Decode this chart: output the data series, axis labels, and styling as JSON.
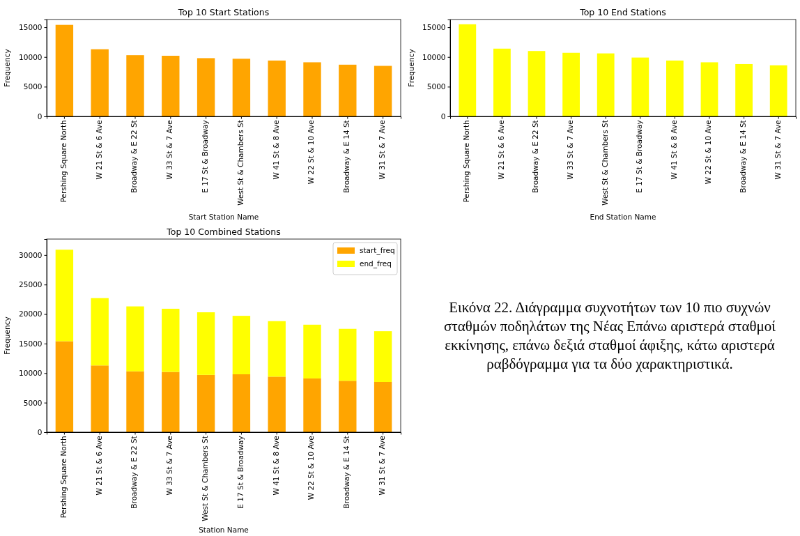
{
  "chart_data": [
    {
      "type": "bar",
      "title": "Top 10 Start Stations",
      "xlabel": "Start Station Name",
      "ylabel": "Frequency",
      "categories": [
        "Pershing Square North",
        "W 21 St & 6 Ave",
        "Broadway & E 22 St",
        "W 33 St & 7 Ave",
        "E 17 St & Broadway",
        "West St & Chambers St",
        "W 41 St & 8 Ave",
        "W 22 St & 10 Ave",
        "Broadway & E 14 St",
        "W 31 St & 7 Ave"
      ],
      "values": [
        15400,
        11300,
        10300,
        10200,
        9800,
        9700,
        9400,
        9100,
        8700,
        8500
      ],
      "color": "#ffa500",
      "ylim": [
        0,
        16300
      ],
      "yticks": [
        0,
        5000,
        10000,
        15000
      ]
    },
    {
      "type": "bar",
      "title": "Top 10 End Stations",
      "xlabel": "End Station Name",
      "ylabel": "Frequency",
      "categories": [
        "Pershing Square North",
        "W 21 St & 6 Ave",
        "Broadway & E 22 St",
        "W 33 St & 7 Ave",
        "West St & Chambers St",
        "E 17 St & Broadway",
        "W 41 St & 8 Ave",
        "W 22 St & 10 Ave",
        "Broadway & E 14 St",
        "W 31 St & 7 Ave"
      ],
      "values": [
        15500,
        11400,
        11000,
        10700,
        10600,
        9900,
        9400,
        9100,
        8800,
        8600
      ],
      "color": "#ffff00",
      "ylim": [
        0,
        16300
      ],
      "yticks": [
        0,
        5000,
        10000,
        15000
      ]
    },
    {
      "type": "bar",
      "title": "Top 10 Combined Stations",
      "xlabel": "Station Name",
      "ylabel": "Frequency",
      "stacked": true,
      "legend": "top right",
      "categories": [
        "Pershing Square North",
        "W 21 St & 6 Ave",
        "Broadway & E 22 St",
        "W 33 St & 7 Ave",
        "West St & Chambers St",
        "E 17 St & Broadway",
        "W 41 St & 8 Ave",
        "W 22 St & 10 Ave",
        "Broadway & E 14 St",
        "W 31 St & 7 Ave"
      ],
      "series": [
        {
          "name": "start_freq",
          "color": "#ffa500",
          "values": [
            15400,
            11300,
            10300,
            10200,
            9700,
            9800,
            9400,
            9100,
            8700,
            8500
          ]
        },
        {
          "name": "end_freq",
          "color": "#ffff00",
          "values": [
            15500,
            11400,
            11000,
            10700,
            10600,
            9900,
            9400,
            9100,
            8800,
            8600
          ]
        }
      ],
      "ylim": [
        0,
        32700
      ],
      "yticks": [
        0,
        5000,
        10000,
        15000,
        20000,
        25000,
        30000
      ]
    },
    {
      "type": "other",
      "annotations": [
        "Εικόνα 22. Διάγραμμα συχνοτήτων των 10 πιο συχνών σταθμών ποδηλάτων της Νέας Επάνω αριστερά σταθμοί εκκίνησης, επάνω δεξιά σταθμοί άφιξης, κάτω αριστερά ραβδόγραμμα για τα δύο χαρακτηριστικά."
      ]
    }
  ]
}
